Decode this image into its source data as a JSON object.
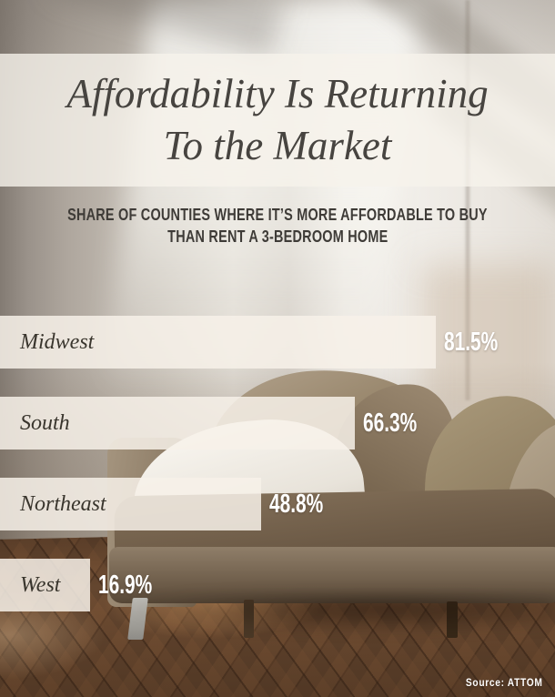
{
  "header": {
    "title_line1": "Affordability Is Returning",
    "title_line2": "To the Market",
    "subtitle_line1": "SHARE OF COUNTIES WHERE IT’S MORE AFFORDABLE TO BUY",
    "subtitle_line2": "THAN RENT A 3-BEDROOM HOME"
  },
  "chart_data": {
    "type": "bar",
    "orientation": "horizontal",
    "title": "Affordability Is Returning To the Market",
    "subtitle": "Share of counties where it’s more affordable to buy than rent a 3-bedroom home",
    "categories": [
      "Midwest",
      "South",
      "Northeast",
      "West"
    ],
    "values": [
      81.5,
      66.3,
      48.8,
      16.9
    ],
    "value_labels": [
      "81.5%",
      "66.3%",
      "48.8%",
      "16.9%"
    ],
    "xlim": [
      0,
      100
    ],
    "grid": false,
    "legend": false,
    "bar_color": "#f4eee5",
    "category_label_color": "#39352d",
    "value_label_color": "#ffffff",
    "title_color": "#474440"
  },
  "footer": {
    "source": "Source: ATTOM"
  }
}
